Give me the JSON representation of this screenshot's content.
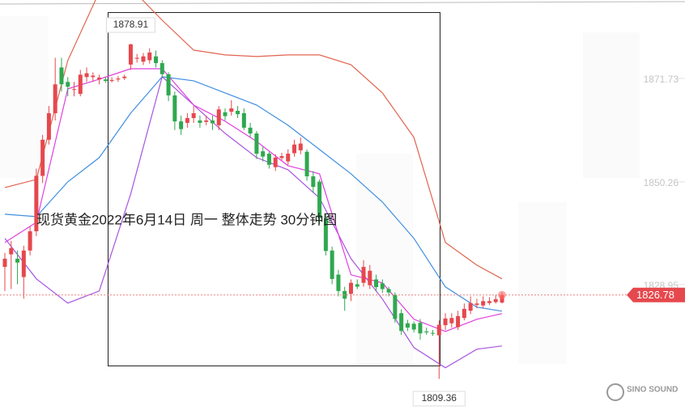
{
  "chart_data": {
    "type": "candlestick",
    "title": "现货黄金2022年6月14日 周一 整体走势  30分钟图",
    "ylim": [
      1802.9,
      1888.0
    ],
    "yticks": [
      1871.73,
      1850.26,
      1828.95
    ],
    "up_color": "#e5484d",
    "down_color": "#2fa84f",
    "open": [
      1832.6,
      1835.2,
      1834.3,
      1830.5,
      1836.0,
      1840.0,
      1851.5,
      1859.0,
      1864.5,
      1874.0,
      1871.0,
      1869.5,
      1868.5,
      1872.0,
      1872.0,
      1871.5,
      1871.5,
      1871.2,
      1871.5,
      1871.8,
      1874.6,
      1875.8,
      1875.2,
      1875.5,
      1876.3,
      1874.9,
      1872.6,
      1868.2,
      1862.8,
      1862.5,
      1863.5,
      1863.0,
      1862.7,
      1863.0,
      1862.0,
      1864.7,
      1864.8,
      1865.0,
      1864.5,
      1861.5,
      1860.3,
      1856.6,
      1856.1,
      1853.3,
      1855.2,
      1854.5,
      1856.2,
      1856.8,
      1856.5,
      1851.4,
      1850.3,
      1842.7,
      1836.0,
      1831.0,
      1827.6,
      1827.0,
      1829.0,
      1829.3,
      1828.8,
      1830.0,
      1829.2,
      1828.0,
      1826.8,
      1823.0,
      1820.9,
      1820.8,
      1821.0,
      1819.2,
      1818.9,
      1818.4,
      1820.5,
      1820.9,
      1820.1,
      1822.0,
      1823.5,
      1824.7,
      1824.6,
      1825.1,
      1825.3,
      1825.2
    ],
    "high": [
      1835.5,
      1838.0,
      1836.0,
      1837.0,
      1841.0,
      1853.0,
      1860.0,
      1866.0,
      1876.0,
      1876.0,
      1872.0,
      1871.0,
      1873.5,
      1874.0,
      1873.0,
      1872.5,
      1872.0,
      1872.0,
      1872.2,
      1872.5,
      1878.91,
      1876.8,
      1877.0,
      1878.0,
      1877.5,
      1875.5,
      1873.0,
      1869.0,
      1864.0,
      1864.5,
      1866.0,
      1864.0,
      1864.0,
      1864.0,
      1866.0,
      1865.5,
      1867.2,
      1866.0,
      1865.5,
      1862.5,
      1860.8,
      1857.5,
      1856.5,
      1856.0,
      1856.3,
      1857.0,
      1859.0,
      1859.5,
      1857.0,
      1852.5,
      1850.8,
      1843.5,
      1836.8,
      1832.0,
      1828.5,
      1830.0,
      1830.0,
      1834.0,
      1833.0,
      1831.0,
      1830.0,
      1828.5,
      1827.3,
      1823.8,
      1821.6,
      1821.3,
      1821.8,
      1820.0,
      1819.5,
      1821.5,
      1823.0,
      1823.0,
      1823.5,
      1825.0,
      1826.5,
      1826.0,
      1826.5,
      1826.3,
      1826.8,
      1827.3
    ],
    "low": [
      1827.6,
      1828.0,
      1829.0,
      1826.0,
      1835.0,
      1839.0,
      1850.0,
      1858.0,
      1863.0,
      1869.0,
      1868.0,
      1868.0,
      1868.0,
      1871.0,
      1871.0,
      1870.5,
      1870.8,
      1870.9,
      1871.0,
      1871.4,
      1873.5,
      1875.0,
      1874.5,
      1874.8,
      1874.0,
      1871.8,
      1867.0,
      1861.0,
      1860.0,
      1861.5,
      1862.5,
      1861.5,
      1862.0,
      1861.0,
      1861.0,
      1863.0,
      1864.0,
      1863.5,
      1861.0,
      1859.5,
      1855.0,
      1854.5,
      1853.0,
      1852.5,
      1854.7,
      1853.8,
      1855.5,
      1856.0,
      1850.5,
      1848.0,
      1841.5,
      1835.0,
      1829.0,
      1826.5,
      1823.5,
      1825.5,
      1828.0,
      1828.5,
      1828.0,
      1827.5,
      1827.2,
      1826.5,
      1821.0,
      1818.5,
      1819.3,
      1819.0,
      1817.5,
      1818.5,
      1818.3,
      1809.36,
      1819.5,
      1820.0,
      1819.5,
      1821.5,
      1822.8,
      1824.0,
      1824.0,
      1824.7,
      1825.0,
      1825.0
    ],
    "close": [
      1834.3,
      1836.5,
      1833.5,
      1836.0,
      1840.0,
      1851.5,
      1859.0,
      1864.5,
      1870.5,
      1870.5,
      1870.0,
      1869.5,
      1872.5,
      1872.8,
      1872.3,
      1871.9,
      1871.2,
      1871.4,
      1871.7,
      1872.1,
      1878.8,
      1876.0,
      1876.3,
      1877.1,
      1874.9,
      1872.6,
      1868.2,
      1862.8,
      1861.2,
      1863.5,
      1864.5,
      1862.5,
      1863.0,
      1862.4,
      1865.3,
      1863.9,
      1865.5,
      1864.3,
      1861.5,
      1860.3,
      1856.1,
      1855.5,
      1853.8,
      1855.3,
      1855.6,
      1856.1,
      1858.0,
      1858.2,
      1851.4,
      1849.2,
      1842.7,
      1835.9,
      1830.1,
      1827.6,
      1826.0,
      1829.3,
      1828.5,
      1832.6,
      1831.8,
      1828.4,
      1828.0,
      1827.3,
      1821.8,
      1819.3,
      1820.0,
      1819.6,
      1818.8,
      1819.0,
      1818.8,
      1820.6,
      1821.9,
      1822.0,
      1822.4,
      1823.9,
      1825.1,
      1825.0,
      1825.5,
      1825.5,
      1825.9,
      1826.78
    ],
    "series": [
      {
        "color": "#e0644f",
        "x": [
          0,
          5,
          10,
          15,
          20,
          25,
          30,
          35,
          40,
          45,
          50,
          55,
          60,
          65,
          70,
          75,
          79
        ],
        "values": [
          1849.08,
          1850.76,
          1875.42,
          1889.68,
          1890.52,
          1883.81,
          1877.6,
          1876.6,
          1876.26,
          1876.6,
          1876.6,
          1874.58,
          1868.71,
          1859.48,
          1837.67,
          1832.97,
          1830.12
        ]
      },
      {
        "color": "#3f8fe0",
        "x": [
          0,
          5,
          10,
          15,
          20,
          25,
          30,
          35,
          40,
          45,
          50,
          55,
          60,
          65,
          70,
          75,
          79
        ],
        "values": [
          1843.54,
          1843.04,
          1850.25,
          1855.29,
          1864.52,
          1872.07,
          1871.23,
          1868.71,
          1866.19,
          1862.0,
          1856.97,
          1851.93,
          1846.06,
          1838.51,
          1828.44,
          1824.25,
          1823.41
        ]
      },
      {
        "color": "#a855e0",
        "x": [
          0,
          5,
          10,
          15,
          20,
          25,
          30,
          35,
          40,
          45,
          50,
          55,
          60,
          65,
          70,
          75,
          79
        ],
        "values": [
          1838.51,
          1830.12,
          1825.09,
          1827.6,
          1847.74,
          1872.07,
          1866.19,
          1860.32,
          1855.29,
          1852.77,
          1846.9,
          1834.31,
          1825.93,
          1815.86,
          1811.67,
          1815.53,
          1816.2
        ]
      },
      {
        "color": "#e040e0",
        "x": [
          0,
          5,
          10,
          15,
          20,
          25,
          30,
          35,
          40,
          45,
          50,
          55,
          60,
          65,
          70,
          75,
          79
        ],
        "values": [
          1837.67,
          1841.86,
          1869.55,
          1871.56,
          1873.74,
          1873.74,
          1866.19,
          1862.84,
          1858.64,
          1853.61,
          1851.93,
          1830.96,
          1829.28,
          1821.73,
          1819.21,
          1821.73,
          1822.91
        ]
      }
    ],
    "high_label": 1878.91,
    "low_label": 1809.36,
    "last_price": 1826.78,
    "watermark": "SINO SOUND"
  }
}
